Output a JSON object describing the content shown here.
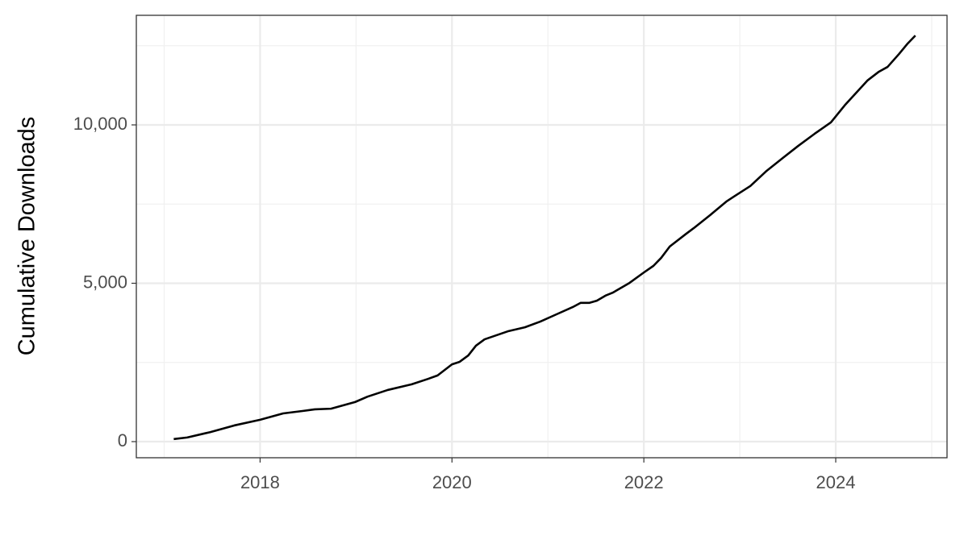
{
  "chart_data": {
    "type": "line",
    "y_label": "Cumulative Downloads",
    "x": [
      2017.1,
      2017.24,
      2017.48,
      2017.73,
      2018.0,
      2018.24,
      2018.45,
      2018.57,
      2018.74,
      2018.99,
      2019.12,
      2019.33,
      2019.58,
      2019.75,
      2019.85,
      2020.0,
      2020.08,
      2020.17,
      2020.25,
      2020.34,
      2020.59,
      2020.76,
      2020.92,
      2021.09,
      2021.26,
      2021.34,
      2021.43,
      2021.51,
      2021.6,
      2021.68,
      2021.85,
      2022.0,
      2022.1,
      2022.18,
      2022.27,
      2022.44,
      2022.52,
      2022.69,
      2022.86,
      2022.94,
      2023.11,
      2023.28,
      2023.45,
      2023.61,
      2023.78,
      2023.95,
      2024.1,
      2024.2,
      2024.33,
      2024.45,
      2024.54,
      2024.66,
      2024.75,
      2024.83
    ],
    "values": [
      80,
      130,
      300,
      510,
      690,
      890,
      970,
      1020,
      1040,
      1250,
      1420,
      1630,
      1810,
      1980,
      2090,
      2440,
      2520,
      2720,
      3030,
      3230,
      3490,
      3610,
      3790,
      4020,
      4250,
      4380,
      4380,
      4450,
      4610,
      4710,
      5010,
      5340,
      5550,
      5800,
      6160,
      6560,
      6740,
      7150,
      7580,
      7740,
      8070,
      8550,
      8960,
      9340,
      9720,
      10080,
      10640,
      10970,
      11400,
      11680,
      11830,
      12240,
      12570,
      12820
    ],
    "color": "#000000",
    "xlim": [
      2016.71,
      2025.16
    ],
    "xticks": [
      2018,
      2020,
      2022,
      2024
    ],
    "x_minor_grid": [
      2017,
      2019,
      2021,
      2023,
      2025
    ],
    "ylim": [
      -509,
      13460
    ],
    "yticks": [
      0,
      {
        "value": 5000,
        "label": "5,000"
      },
      {
        "value": 10000,
        "label": "10,000"
      }
    ],
    "y_minor_grid": [
      2500,
      7500,
      12500
    ],
    "grid": true
  }
}
